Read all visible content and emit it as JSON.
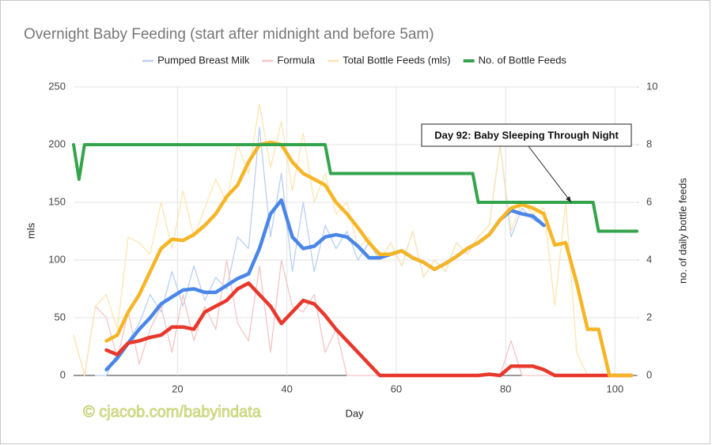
{
  "chart_data": {
    "type": "line",
    "title": "Overnight Baby Feeding (start after midnight and before 5am)",
    "xlabel": "Day",
    "ylabel": "mls",
    "y2label": "no. of daily bottle feeds",
    "watermark": "©  cjacob.com/babyindata",
    "xlim": [
      1,
      104
    ],
    "xticks": [
      20,
      40,
      60,
      80,
      100
    ],
    "ylim": [
      0,
      250
    ],
    "yticks": [
      0,
      50,
      100,
      150,
      200,
      250
    ],
    "y2lim": [
      0,
      10
    ],
    "y2ticks": [
      0,
      2,
      4,
      6,
      8,
      10
    ],
    "grid": true,
    "legend": "top",
    "x": [
      1,
      3,
      5,
      7,
      9,
      11,
      13,
      15,
      17,
      19,
      21,
      23,
      25,
      27,
      29,
      31,
      33,
      35,
      37,
      39,
      41,
      43,
      45,
      47,
      49,
      51,
      53,
      55,
      57,
      59,
      61,
      63,
      65,
      67,
      69,
      71,
      73,
      75,
      77,
      79,
      81,
      83,
      85,
      87,
      89,
      91,
      93,
      95,
      97,
      99,
      101,
      103
    ],
    "series": [
      {
        "name": "Pumped Breast Milk",
        "color": "#b9cff5",
        "values": [
          null,
          null,
          0,
          0,
          20,
          30,
          45,
          70,
          55,
          90,
          60,
          95,
          65,
          85,
          75,
          120,
          110,
          215,
          120,
          175,
          90,
          150,
          90,
          130,
          110,
          125,
          100,
          115,
          100,
          115,
          95,
          125,
          85,
          100,
          90,
          115,
          105,
          120,
          130,
          200,
          120,
          145,
          135,
          130,
          null,
          null,
          null,
          null,
          null,
          null,
          null,
          null
        ],
        "trend": {
          "color": "#4a86e8",
          "values": [
            null,
            null,
            null,
            5,
            15,
            28,
            40,
            50,
            62,
            68,
            74,
            75,
            72,
            72,
            78,
            84,
            88,
            110,
            140,
            152,
            120,
            110,
            112,
            120,
            122,
            120,
            112,
            102,
            102,
            105,
            108,
            102,
            98,
            92,
            97,
            103,
            110,
            115,
            122,
            135,
            143,
            140,
            138,
            130,
            null,
            null,
            null,
            null,
            null,
            null,
            null,
            null
          ]
        }
      },
      {
        "name": "Formula",
        "color": "#f6c4c4",
        "values": [
          35,
          0,
          60,
          50,
          15,
          55,
          10,
          40,
          60,
          20,
          70,
          30,
          60,
          40,
          100,
          45,
          30,
          95,
          20,
          100,
          60,
          55,
          70,
          20,
          40,
          0,
          0,
          0,
          0,
          0,
          0,
          0,
          0,
          0,
          0,
          0,
          0,
          0,
          0,
          0,
          30,
          0,
          0,
          0,
          0,
          0,
          0,
          0,
          0,
          0,
          0,
          0
        ],
        "trend": {
          "color": "#e8382c",
          "values": [
            null,
            null,
            null,
            22,
            18,
            28,
            30,
            33,
            35,
            42,
            42,
            40,
            55,
            60,
            65,
            75,
            80,
            70,
            60,
            45,
            55,
            65,
            62,
            52,
            40,
            30,
            20,
            10,
            0,
            0,
            0,
            0,
            0,
            0,
            0,
            0,
            0,
            0,
            1,
            0,
            8,
            8,
            8,
            5,
            0,
            0,
            0,
            0,
            0,
            0,
            0,
            0
          ]
        }
      },
      {
        "name": "Total Bottle Feeds (mls)",
        "color": "#fde5b0",
        "values": [
          35,
          0,
          60,
          70,
          40,
          120,
          115,
          105,
          150,
          110,
          160,
          120,
          145,
          170,
          150,
          200,
          175,
          235,
          180,
          220,
          160,
          210,
          150,
          175,
          140,
          150,
          110,
          120,
          100,
          115,
          95,
          125,
          85,
          100,
          90,
          115,
          105,
          120,
          130,
          200,
          125,
          150,
          140,
          145,
          60,
          150,
          20,
          0,
          0,
          0,
          0,
          0
        ],
        "trend": {
          "color": "#f6b526",
          "values": [
            null,
            null,
            null,
            30,
            35,
            55,
            70,
            90,
            110,
            118,
            117,
            122,
            130,
            140,
            155,
            165,
            185,
            200,
            202,
            200,
            185,
            175,
            170,
            165,
            150,
            140,
            128,
            115,
            105,
            105,
            108,
            102,
            98,
            92,
            97,
            103,
            110,
            115,
            122,
            135,
            145,
            148,
            145,
            140,
            113,
            115,
            80,
            40,
            40,
            0,
            0,
            0
          ]
        }
      },
      {
        "name": "No. of Bottle Feeds",
        "color": "#34a44c",
        "axis": "y2",
        "x": [
          1,
          2,
          3,
          47,
          48,
          74,
          75,
          96,
          97,
          104
        ],
        "values": [
          8,
          6.8,
          8,
          8,
          7,
          7,
          6,
          6,
          5,
          5
        ]
      }
    ],
    "annotations": [
      {
        "text": "Day 92: Baby Sleeping Through Night",
        "x": 92,
        "y": 6,
        "axis": "y2"
      }
    ]
  }
}
